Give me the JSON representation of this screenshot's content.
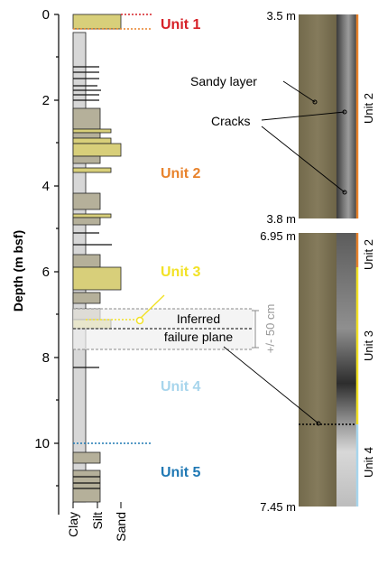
{
  "axis": {
    "label": "Depth (m bsf)",
    "ticks": [
      "0",
      "2",
      "4",
      "6",
      "8",
      "10"
    ],
    "grain_labels": [
      "Clay",
      "Silt",
      "Sand"
    ]
  },
  "units": [
    {
      "label": "Unit 1",
      "color": "#d62027"
    },
    {
      "label": "Unit 2",
      "color": "#e8822b"
    },
    {
      "label": "Unit 3",
      "color": "#f2e225"
    },
    {
      "label": "Unit 4",
      "color": "#a7d5ec"
    },
    {
      "label": "Unit 5",
      "color": "#1f78b4"
    }
  ],
  "failure": {
    "label_line1": "Inferred",
    "label_line2": "failure plane",
    "uncertainty": "+/- 50 cm"
  },
  "core_top": {
    "top_depth": "3.5 m",
    "bottom_depth": "3.8 m",
    "unit_label": "Unit 2",
    "annotations": [
      "Sandy layer",
      "Cracks"
    ]
  },
  "core_bottom": {
    "top_depth": "6.95 m",
    "bottom_depth": "7.45 m",
    "unit_labels": [
      "Unit 2",
      "Unit 3",
      "Unit 4"
    ]
  },
  "colors": {
    "clay": "#d7d7d7",
    "silt": "#b5b09a",
    "sand": "#d8cf7a",
    "core_sediment": "#7e7456",
    "core_xray": "#8a8a8a"
  }
}
